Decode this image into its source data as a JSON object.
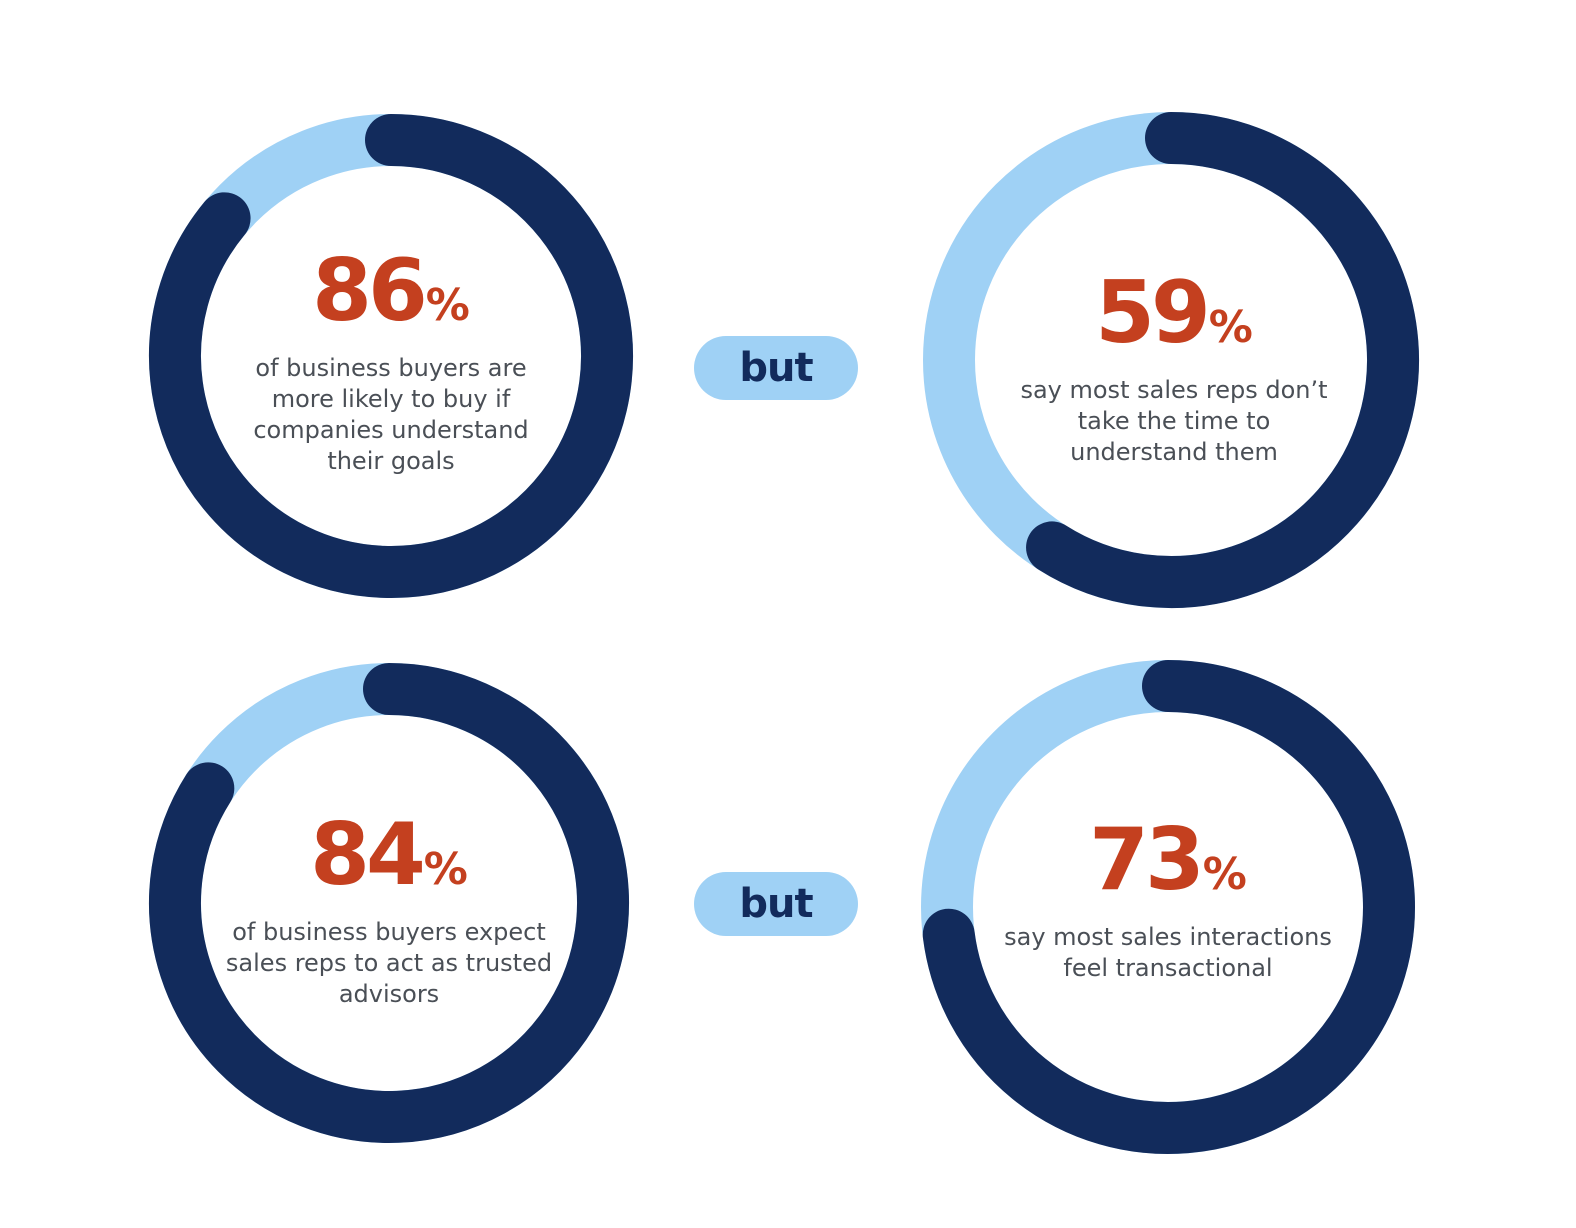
{
  "colors": {
    "arc": "#122b5c",
    "track": "#9fd1f5",
    "value": "#c4401f",
    "caption": "#4a4f56",
    "pill": "#9fd1f5",
    "pill_text": "#122b5c"
  },
  "chart_data": [
    {
      "type": "donut",
      "value": 86,
      "percent_symbol": "%",
      "caption": "of business buyers are more likely to buy if companies understand their goals"
    },
    {
      "type": "donut",
      "value": 59,
      "percent_symbol": "%",
      "caption": "say most sales reps don’t take the time to understand them"
    },
    {
      "type": "donut",
      "value": 84,
      "percent_symbol": "%",
      "caption": "of business buyers expect sales reps to act as trusted advisors"
    },
    {
      "type": "donut",
      "value": 73,
      "percent_symbol": "%",
      "caption": "say most sales interactions feel transactional"
    }
  ],
  "connectors": [
    {
      "label": "but"
    },
    {
      "label": "but"
    }
  ]
}
